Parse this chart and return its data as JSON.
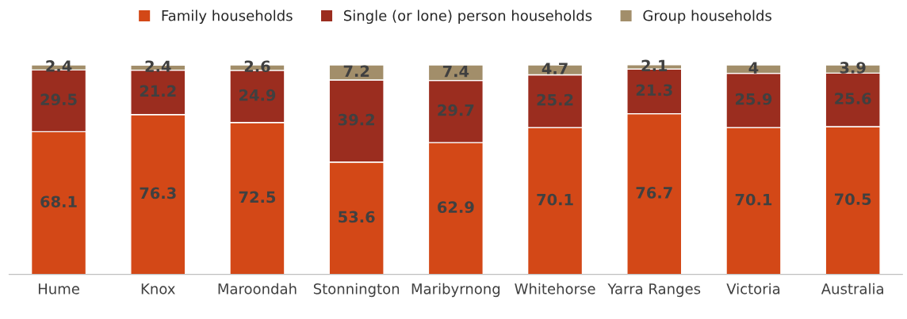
{
  "chart_data": {
    "type": "bar",
    "stacked": true,
    "data_labels": true,
    "legend": "top",
    "grid": false,
    "categories": [
      "Hume",
      "Knox",
      "Maroondah",
      "Stonnington",
      "Maribyrnong",
      "Whitehorse",
      "Yarra Ranges",
      "Victoria",
      "Australia"
    ],
    "series": [
      {
        "name": "Family households",
        "color": "#d34817",
        "values": [
          68.1,
          76.3,
          72.5,
          53.6,
          62.9,
          70.1,
          76.7,
          70.1,
          70.5
        ]
      },
      {
        "name": "Single (or lone) person households",
        "color": "#9b2d1f",
        "values": [
          29.5,
          21.2,
          24.9,
          39.2,
          29.7,
          25.2,
          21.3,
          25.9,
          25.6
        ]
      },
      {
        "name": "Group households",
        "color": "#a28e6a",
        "values": [
          2.4,
          2.4,
          2.6,
          7.2,
          7.4,
          4.7,
          2.1,
          4,
          3.9
        ]
      }
    ]
  }
}
